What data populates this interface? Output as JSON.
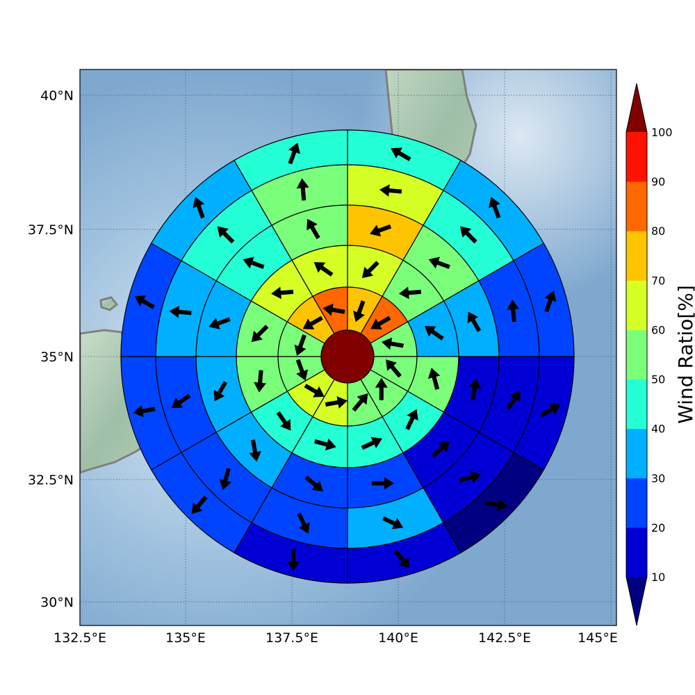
{
  "map": {
    "lon_range": [
      132.5,
      145.5
    ],
    "lat_range": [
      29.5,
      40.5
    ],
    "x_ticks": [
      132.5,
      135,
      137.5,
      140,
      142.5,
      145
    ],
    "y_ticks": [
      30,
      32.5,
      35,
      37.5,
      40
    ],
    "x_tick_labels": [
      "132.5°E",
      "135°E",
      "137.5°E",
      "140°E",
      "142.5°E",
      "145°E"
    ],
    "y_tick_labels": [
      "30°N",
      "32.5°N",
      "35°N",
      "37.5°N",
      "40°N"
    ],
    "grid": true,
    "background": "shaded-relief",
    "ocean_color": "#88b1d6",
    "coastline_color": "#808080"
  },
  "wind_rose": {
    "center": {
      "lon": 139.0,
      "lat": 35.0
    },
    "sectors_per_ring": 12,
    "center_value": 100,
    "rings": [
      {
        "values": [
          75,
          85,
          55,
          55,
          55,
          55,
          65,
          65,
          55,
          55,
          75,
          85
        ]
      },
      {
        "values": [
          65,
          55,
          35,
          55,
          45,
          45,
          45,
          45,
          55,
          55,
          65,
          65
        ]
      },
      {
        "values": [
          75,
          55,
          35,
          15,
          15,
          25,
          25,
          35,
          35,
          35,
          45,
          55
        ]
      },
      {
        "values": [
          65,
          45,
          25,
          15,
          15,
          35,
          25,
          25,
          25,
          35,
          45,
          55
        ]
      },
      {
        "values": [
          45,
          35,
          25,
          15,
          5,
          15,
          15,
          25,
          25,
          25,
          35,
          45
        ]
      }
    ]
  },
  "colorbar": {
    "title": "Wind Ratio[%]",
    "tick_labels": [
      "10",
      "20",
      "30",
      "40",
      "50",
      "60",
      "70",
      "80",
      "90",
      "100"
    ],
    "boundaries": [
      10,
      20,
      30,
      40,
      50,
      60,
      70,
      80,
      90,
      100
    ],
    "colors": [
      "#0000d5",
      "#0044ff",
      "#00b0ff",
      "#25ffd6",
      "#7bff7b",
      "#d6ff25",
      "#ffc400",
      "#ff6700",
      "#ff1300"
    ],
    "under_color": "#000080",
    "over_color": "#800000"
  }
}
